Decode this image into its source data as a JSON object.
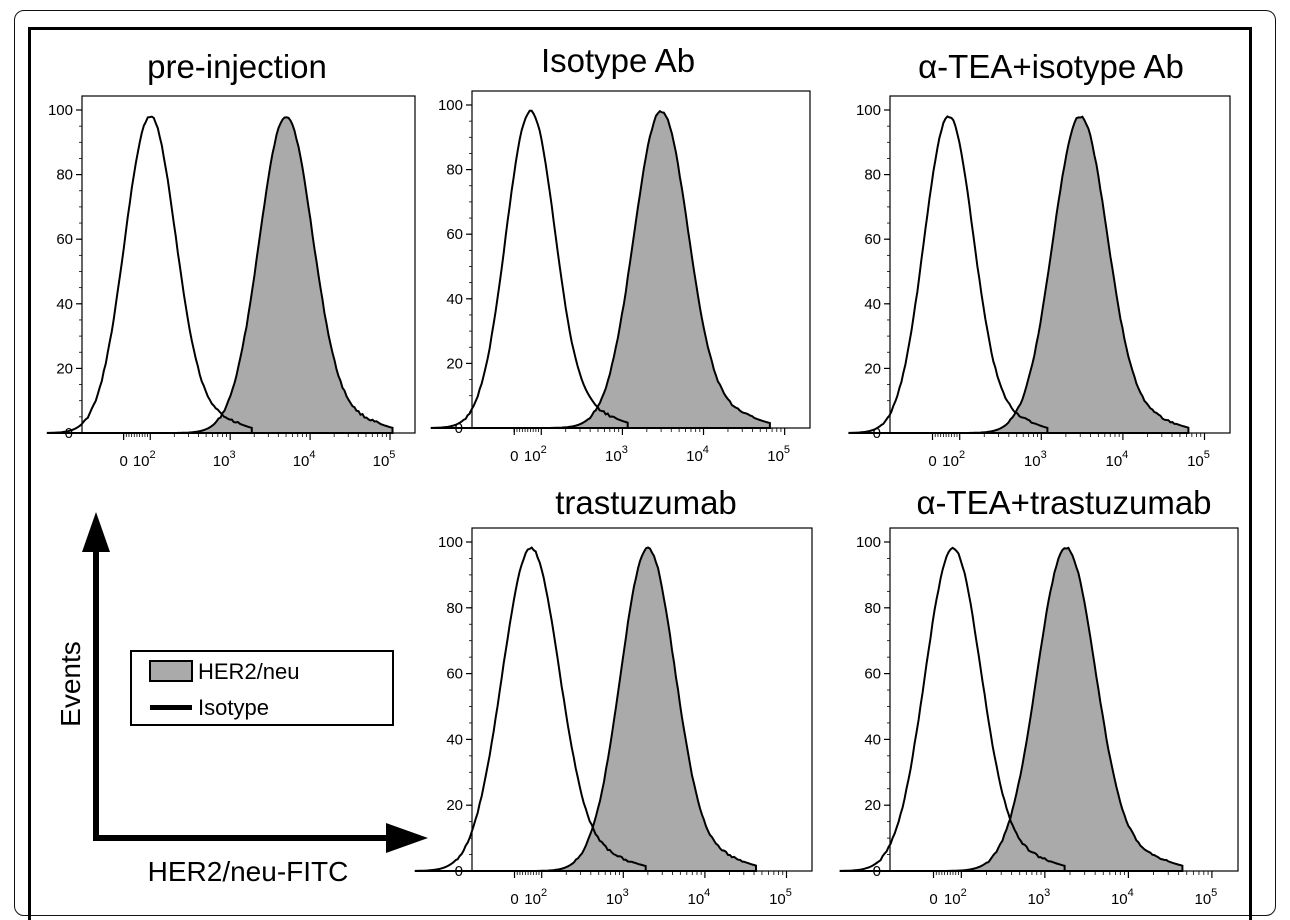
{
  "chart_data": [
    {
      "type": "histogram",
      "title": "pre-injection",
      "ylim": [
        0,
        100
      ],
      "yticks": [
        "0",
        "20",
        "40",
        "60",
        "80",
        "100"
      ],
      "xticks": [
        "0",
        "10",
        "10",
        "10",
        "10"
      ],
      "xtick_exponents": [
        "",
        "2",
        "3",
        "4",
        "5"
      ],
      "xscale": "biexponential",
      "series": [
        {
          "name": "Isotype",
          "fill": "none",
          "peak_x": 100,
          "peak_y": 98
        },
        {
          "name": "HER2/neu",
          "fill": "#aaaaaa",
          "peak_x": 5000,
          "peak_y": 98
        }
      ]
    },
    {
      "type": "histogram",
      "title": "Isotype Ab",
      "ylim": [
        0,
        100
      ],
      "yticks": [
        "0",
        "20",
        "40",
        "60",
        "80",
        "100"
      ],
      "xticks": [
        "0",
        "10",
        "10",
        "10",
        "10"
      ],
      "xtick_exponents": [
        "",
        "2",
        "3",
        "4",
        "5"
      ],
      "xscale": "biexponential",
      "series": [
        {
          "name": "Isotype",
          "fill": "none",
          "peak_x": 60,
          "peak_y": 98
        },
        {
          "name": "HER2/neu",
          "fill": "#aaaaaa",
          "peak_x": 3000,
          "peak_y": 98
        }
      ]
    },
    {
      "type": "histogram",
      "title": "α-TEA+isotype Ab",
      "ylim": [
        0,
        100
      ],
      "yticks": [
        "0",
        "20",
        "40",
        "60",
        "80",
        "100"
      ],
      "xticks": [
        "0",
        "10",
        "10",
        "10",
        "10"
      ],
      "xtick_exponents": [
        "",
        "2",
        "3",
        "4",
        "5"
      ],
      "xscale": "biexponential",
      "series": [
        {
          "name": "Isotype",
          "fill": "none",
          "peak_x": 60,
          "peak_y": 98
        },
        {
          "name": "HER2/neu",
          "fill": "#aaaaaa",
          "peak_x": 3000,
          "peak_y": 98
        }
      ]
    },
    {
      "type": "histogram",
      "title": "trastuzumab",
      "ylim": [
        0,
        100
      ],
      "yticks": [
        "0",
        "20",
        "40",
        "60",
        "80",
        "100"
      ],
      "xticks": [
        "0",
        "10",
        "10",
        "10",
        "10"
      ],
      "xtick_exponents": [
        "",
        "2",
        "3",
        "4",
        "5"
      ],
      "xscale": "biexponential",
      "series": [
        {
          "name": "Isotype",
          "fill": "none",
          "peak_x": 60,
          "peak_y": 98
        },
        {
          "name": "HER2/neu",
          "fill": "#aaaaaa",
          "peak_x": 2000,
          "peak_y": 98
        }
      ]
    },
    {
      "type": "histogram",
      "title": "α-TEA+trastuzumab",
      "ylim": [
        0,
        100
      ],
      "yticks": [
        "0",
        "20",
        "40",
        "60",
        "80",
        "100"
      ],
      "xticks": [
        "0",
        "10",
        "10",
        "10",
        "10"
      ],
      "xtick_exponents": [
        "",
        "2",
        "3",
        "4",
        "5"
      ],
      "xscale": "biexponential",
      "series": [
        {
          "name": "Isotype",
          "fill": "none",
          "peak_x": 70,
          "peak_y": 98
        },
        {
          "name": "HER2/neu",
          "fill": "#aaaaaa",
          "peak_x": 1800,
          "peak_y": 98
        }
      ]
    }
  ],
  "legend": {
    "items": [
      {
        "label": "HER2/neu",
        "swatch": "#aaaaaa"
      },
      {
        "label": "Isotype",
        "swatch": "#000000"
      }
    ]
  },
  "axes_key": {
    "y_label": "Events",
    "x_label": "HER2/neu-FITC"
  },
  "colors": {
    "fill": "#aaaaaa",
    "line": "#000000"
  }
}
